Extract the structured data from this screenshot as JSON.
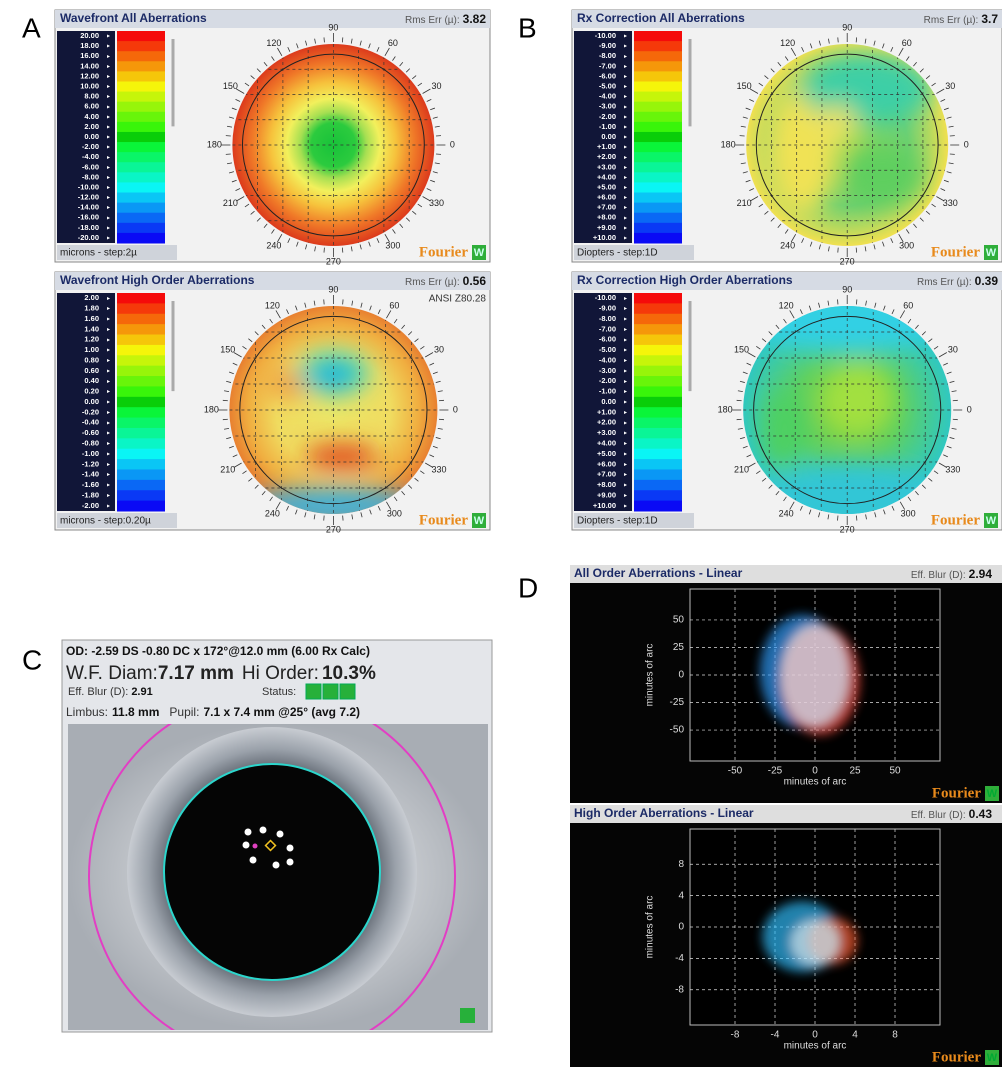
{
  "figure_labels": {
    "a": "A",
    "b": "B",
    "c": "C",
    "d": "D"
  },
  "angle_labels": [
    "90",
    "60",
    "30",
    "0",
    "330",
    "300",
    "270",
    "240",
    "210",
    "180",
    "150",
    "120"
  ],
  "brand": "Fourier",
  "brand_mark": "W",
  "maps": [
    {
      "title": "Wavefront All Aberrations",
      "rms_label": "Rms Err (µ):",
      "rms_value": "3.82",
      "scale": [
        "20.00",
        "18.00",
        "16.00",
        "14.00",
        "12.00",
        "10.00",
        "8.00",
        "6.00",
        "4.00",
        "2.00",
        "0.00",
        "-2.00",
        "-4.00",
        "-6.00",
        "-8.00",
        "-10.00",
        "-12.00",
        "-14.00",
        "-16.00",
        "-18.00",
        "-20.00"
      ],
      "unit": "microns - step:2µ"
    },
    {
      "title": "Wavefront High Order Aberrations",
      "rms_label": "Rms Err (µ):",
      "rms_value": "0.56",
      "note": "ANSI Z80.28",
      "scale": [
        "2.00",
        "1.80",
        "1.60",
        "1.40",
        "1.20",
        "1.00",
        "0.80",
        "0.60",
        "0.40",
        "0.20",
        "0.00",
        "-0.20",
        "-0.40",
        "-0.60",
        "-0.80",
        "-1.00",
        "-1.20",
        "-1.40",
        "-1.60",
        "-1.80",
        "-2.00"
      ],
      "unit": "microns - step:0.20µ"
    },
    {
      "title": "Rx Correction All Aberrations",
      "rms_label": "Rms Err (µ):",
      "rms_value": "3.7",
      "scale": [
        "-10.00",
        "-9.00",
        "-8.00",
        "-7.00",
        "-6.00",
        "-5.00",
        "-4.00",
        "-3.00",
        "-2.00",
        "-1.00",
        "0.00",
        "+1.00",
        "+2.00",
        "+3.00",
        "+4.00",
        "+5.00",
        "+6.00",
        "+7.00",
        "+8.00",
        "+9.00",
        "+10.00"
      ],
      "unit": "Diopters - step:1D"
    },
    {
      "title": "Rx Correction High Order Aberrations",
      "rms_label": "Rms Err (µ):",
      "rms_value": "0.39",
      "scale": [
        "-10.00",
        "-9.00",
        "-8.00",
        "-7.00",
        "-6.00",
        "-5.00",
        "-4.00",
        "-3.00",
        "-2.00",
        "-1.00",
        "0.00",
        "+1.00",
        "+2.00",
        "+3.00",
        "+4.00",
        "+5.00",
        "+6.00",
        "+7.00",
        "+8.00",
        "+9.00",
        "+10.00"
      ],
      "unit": "Diopters - step:1D"
    }
  ],
  "eye": {
    "rx": "OD: -2.59 DS -0.80 DC x 172°@12.0 mm (6.00 Rx Calc)",
    "diam_label": "W.F. Diam:",
    "diam_value": "7.17 mm",
    "hi_order_label": "Hi Order:",
    "hi_order_value": "10.3%",
    "blur_label": "Eff. Blur (D):",
    "blur_value": "2.91",
    "status_label": "Status:",
    "limbus_label": "Limbus:",
    "limbus_value": "11.8 mm",
    "pupil_label": "Pupil:",
    "pupil_value": "7.1 x 7.4 mm @25° (avg 7.2)"
  },
  "psf": [
    {
      "title": "All Order Aberrations - Linear",
      "blur_label": "Eff. Blur (D):",
      "blur_value": "2.94",
      "yticks": [
        "50",
        "25",
        "0",
        "-25",
        "-50"
      ],
      "xticks": [
        "-50",
        "-25",
        "0",
        "25",
        "50"
      ],
      "x_label": "minutes of arc",
      "y_label": "minutes of arc"
    },
    {
      "title": "High Order Aberrations - Linear",
      "blur_label": "Eff. Blur (D):",
      "blur_value": "0.43",
      "yticks": [
        "8",
        "4",
        "0",
        "-4",
        "-8"
      ],
      "xticks": [
        "-8",
        "-4",
        "0",
        "4",
        "8"
      ],
      "x_label": "minutes of arc",
      "y_label": "minutes of arc"
    }
  ]
}
